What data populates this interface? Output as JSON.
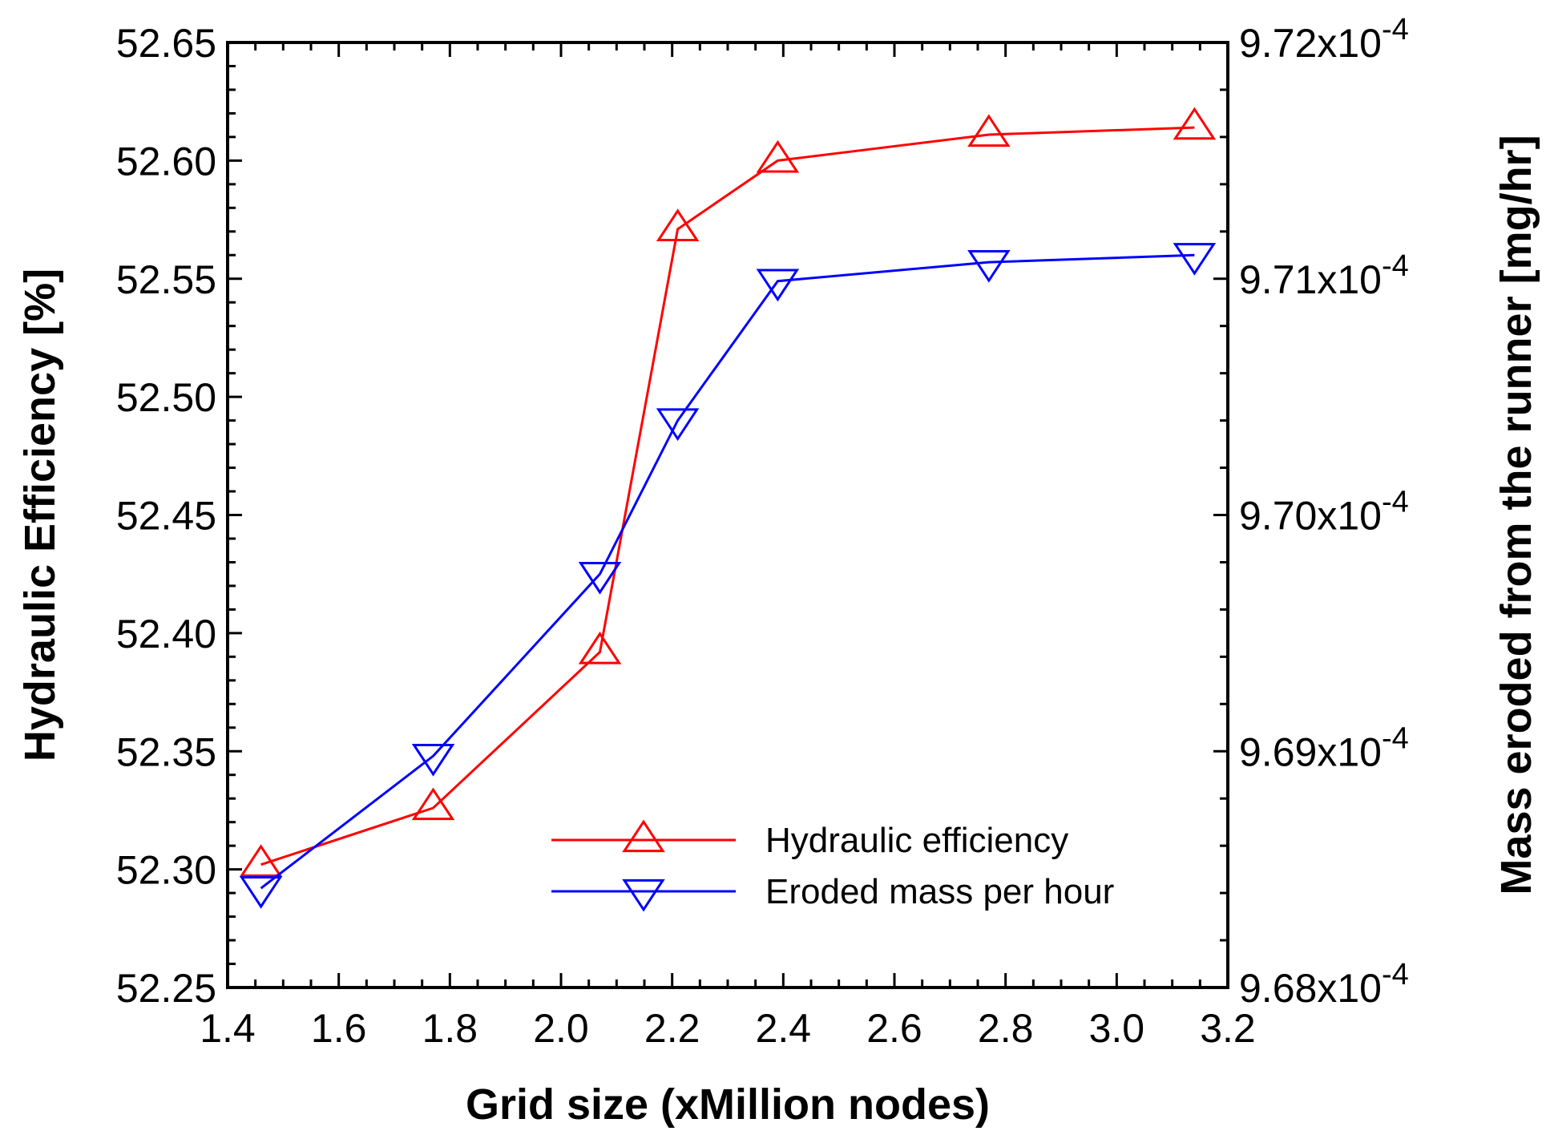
{
  "chart_data": {
    "type": "line",
    "title": "",
    "xlabel": "Grid size (xMillion nodes)",
    "ylabel": "Hydraulic Efficiency [%]",
    "y2label": "Mass eroded from the runner [mg/hr]",
    "xlim": [
      1.4,
      3.2
    ],
    "ylim": [
      52.25,
      52.65
    ],
    "y2lim": [
      0.000968,
      0.000972
    ],
    "x_ticks": [
      "1.4",
      "1.6",
      "1.8",
      "2.0",
      "2.2",
      "2.4",
      "2.6",
      "2.8",
      "3.0",
      "3.2"
    ],
    "y_ticks": [
      "52.25",
      "52.30",
      "52.35",
      "52.40",
      "52.45",
      "52.50",
      "52.55",
      "52.60",
      "52.65"
    ],
    "y2_ticks": [
      {
        "base": "9.68x10",
        "exp": "-4"
      },
      {
        "base": "9.69x10",
        "exp": "-4"
      },
      {
        "base": "9.70x10",
        "exp": "-4"
      },
      {
        "base": "9.71x10",
        "exp": "-4"
      },
      {
        "base": "9.72x10",
        "exp": "-4"
      }
    ],
    "series": [
      {
        "name": "Hydraulic efficiency",
        "axis": "left",
        "color": "#ff0000",
        "marker": "triangle-up",
        "x": [
          1.46,
          1.77,
          2.07,
          2.21,
          2.39,
          2.77,
          3.14
        ],
        "values": [
          52.302,
          52.326,
          52.392,
          52.571,
          52.6,
          52.611,
          52.614
        ]
      },
      {
        "name": "Eroded mass per hour",
        "axis": "right",
        "color": "#0000ff",
        "marker": "triangle-down",
        "x": [
          1.46,
          1.77,
          2.07,
          2.21,
          2.39,
          2.77,
          3.14
        ],
        "values": [
          0.00096842,
          0.00096898,
          0.00096975,
          0.0009704,
          0.00097099,
          0.00097107,
          0.0009711
        ]
      }
    ],
    "legend": {
      "position": "bottom-right",
      "entries": [
        "Hydraulic efficiency",
        "Eroded mass per hour"
      ]
    }
  }
}
